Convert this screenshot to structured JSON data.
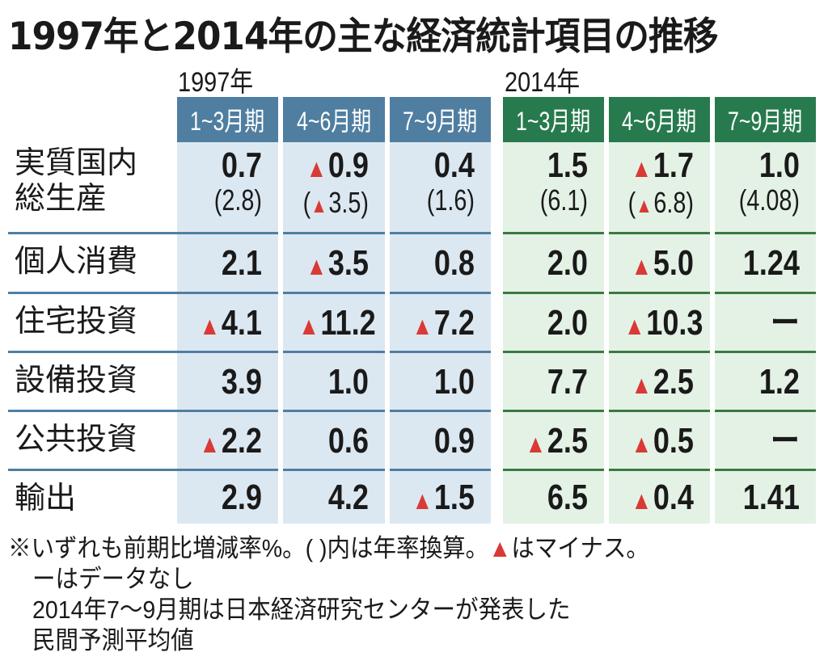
{
  "title": "1997年と2014年の主な経済統計項目の推移",
  "years": [
    {
      "label": "1997年",
      "periods": [
        "1~3月期",
        "4~6月期",
        "7~9月期"
      ],
      "color": "#4f7ea1",
      "cell_bg": "#dce8f1"
    },
    {
      "label": "2014年",
      "periods": [
        "1~3月期",
        "4~6月期",
        "7~9月期"
      ],
      "color": "#277a4e",
      "cell_bg": "#e4f2e6"
    }
  ],
  "negative_marker": "▲",
  "negative_color": "#d93a36",
  "rows": [
    {
      "label_lines": [
        "実質国内",
        "総生産"
      ],
      "values": [
        {
          "main": "0.7",
          "neg": false,
          "annual": "2.8",
          "annual_neg": false
        },
        {
          "main": "0.9",
          "neg": true,
          "annual": "3.5",
          "annual_neg": true
        },
        {
          "main": "0.4",
          "neg": false,
          "annual": "1.6",
          "annual_neg": false
        },
        {
          "main": "1.5",
          "neg": false,
          "annual": "6.1",
          "annual_neg": false
        },
        {
          "main": "1.7",
          "neg": true,
          "annual": "6.8",
          "annual_neg": true
        },
        {
          "main": "1.0",
          "neg": false,
          "annual": "4.08",
          "annual_neg": false
        }
      ]
    },
    {
      "label_lines": [
        "個人消費"
      ],
      "values": [
        {
          "main": "2.1",
          "neg": false
        },
        {
          "main": "3.5",
          "neg": true
        },
        {
          "main": "0.8",
          "neg": false
        },
        {
          "main": "2.0",
          "neg": false
        },
        {
          "main": "5.0",
          "neg": true
        },
        {
          "main": "1.24",
          "neg": false
        }
      ]
    },
    {
      "label_lines": [
        "住宅投資"
      ],
      "values": [
        {
          "main": "4.1",
          "neg": true
        },
        {
          "main": "11.2",
          "neg": true
        },
        {
          "main": "7.2",
          "neg": true
        },
        {
          "main": "2.0",
          "neg": false
        },
        {
          "main": "10.3",
          "neg": true
        },
        {
          "main": "ー",
          "neg": false
        }
      ]
    },
    {
      "label_lines": [
        "設備投資"
      ],
      "values": [
        {
          "main": "3.9",
          "neg": false
        },
        {
          "main": "1.0",
          "neg": false
        },
        {
          "main": "1.0",
          "neg": false
        },
        {
          "main": "7.7",
          "neg": false
        },
        {
          "main": "2.5",
          "neg": true
        },
        {
          "main": "1.2",
          "neg": false
        }
      ]
    },
    {
      "label_lines": [
        "公共投資"
      ],
      "values": [
        {
          "main": "2.2",
          "neg": true
        },
        {
          "main": "0.6",
          "neg": false
        },
        {
          "main": "0.9",
          "neg": false
        },
        {
          "main": "2.5",
          "neg": true
        },
        {
          "main": "0.5",
          "neg": true
        },
        {
          "main": "ー",
          "neg": false
        }
      ]
    },
    {
      "label_lines": [
        "輸出"
      ],
      "values": [
        {
          "main": "2.9",
          "neg": false
        },
        {
          "main": "4.2",
          "neg": false
        },
        {
          "main": "1.5",
          "neg": true
        },
        {
          "main": "6.5",
          "neg": false
        },
        {
          "main": "0.4",
          "neg": true
        },
        {
          "main": "1.41",
          "neg": false
        }
      ]
    }
  ],
  "notes": {
    "line1_before": "※いずれも前期比増減率%。( )内は年率換算。",
    "line1_marker": "▲",
    "line1_after": "はマイナス。",
    "line2": "ーはデータなし",
    "line3": "2014年7～9月期は日本経済研究センターが発表した",
    "line4": "民間予測平均値"
  },
  "chart_data": {
    "type": "table",
    "title": "1997年と2014年の主な経済統計項目の推移",
    "unit": "前期比増減率% (括弧内は年率換算、マイナスは負値)",
    "columns": [
      "1997年1~3月期",
      "1997年4~6月期",
      "1997年7~9月期",
      "2014年1~3月期",
      "2014年4~6月期",
      "2014年7~9月期"
    ],
    "rows": [
      {
        "name": "実質国内総生産",
        "values": [
          0.7,
          -0.9,
          0.4,
          1.5,
          -1.7,
          1.0
        ],
        "annualized": [
          2.8,
          -3.5,
          1.6,
          6.1,
          -6.8,
          4.08
        ]
      },
      {
        "name": "個人消費",
        "values": [
          2.1,
          -3.5,
          0.8,
          2.0,
          -5.0,
          1.24
        ]
      },
      {
        "name": "住宅投資",
        "values": [
          -4.1,
          -11.2,
          -7.2,
          2.0,
          -10.3,
          null
        ]
      },
      {
        "name": "設備投資",
        "values": [
          3.9,
          1.0,
          1.0,
          7.7,
          -2.5,
          1.2
        ]
      },
      {
        "name": "公共投資",
        "values": [
          -2.2,
          0.6,
          0.9,
          -2.5,
          -0.5,
          null
        ]
      },
      {
        "name": "輸出",
        "values": [
          2.9,
          4.2,
          -1.5,
          6.5,
          -0.4,
          1.41
        ]
      }
    ]
  }
}
